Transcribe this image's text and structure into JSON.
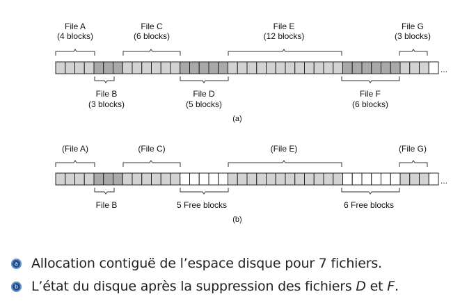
{
  "diagram_a": {
    "top_labels": [
      {
        "name": "File A",
        "blocks": "(4 blocks)"
      },
      {
        "name": "File C",
        "blocks": "(6 blocks)"
      },
      {
        "name": "File E",
        "blocks": "(12 blocks)"
      },
      {
        "name": "File G",
        "blocks": "(3 blocks)"
      }
    ],
    "bottom_labels": [
      {
        "name": "File B",
        "blocks": "(3 blocks)"
      },
      {
        "name": "File D",
        "blocks": "(5 blocks)"
      },
      {
        "name": "File F",
        "blocks": "(6 blocks)"
      }
    ],
    "caption": "(a)",
    "ellipsis": "..."
  },
  "diagram_b": {
    "top_labels": [
      "(File A)",
      "(File C)",
      "(File E)",
      "(File G)"
    ],
    "bottom_labels": [
      "File B",
      "5 Free blocks",
      "6 Free blocks"
    ],
    "caption": "(b)",
    "ellipsis": "..."
  },
  "disk": {
    "total_blocks": 40,
    "files_a": [
      {
        "file": "A",
        "start": 0,
        "length": 4,
        "color": "#d3d3d3"
      },
      {
        "file": "B",
        "start": 4,
        "length": 3,
        "color": "#a9a9a9"
      },
      {
        "file": "C",
        "start": 7,
        "length": 6,
        "color": "#d3d3d3"
      },
      {
        "file": "D",
        "start": 13,
        "length": 5,
        "color": "#a9a9a9"
      },
      {
        "file": "E",
        "start": 18,
        "length": 12,
        "color": "#d3d3d3"
      },
      {
        "file": "F",
        "start": 30,
        "length": 6,
        "color": "#a9a9a9"
      },
      {
        "file": "G",
        "start": 36,
        "length": 3,
        "color": "#d3d3d3"
      }
    ],
    "files_b": [
      {
        "file": "A",
        "start": 0,
        "length": 4,
        "color": "#d3d3d3"
      },
      {
        "file": "B",
        "start": 4,
        "length": 3,
        "color": "#a9a9a9"
      },
      {
        "file": "C",
        "start": 7,
        "length": 6,
        "color": "#d3d3d3"
      },
      {
        "file": "E",
        "start": 18,
        "length": 12,
        "color": "#d3d3d3"
      },
      {
        "file": "G",
        "start": 36,
        "length": 3,
        "color": "#d3d3d3"
      }
    ],
    "free_color": "#ffffff"
  },
  "legend": {
    "a_icon": "a",
    "a_text": "Allocation contiguë de l’espace disque pour 7 fichiers.",
    "b_icon": "b",
    "b_text_1": "L’état du disque après la suppression des fichiers ",
    "b_d": "D",
    "b_text_2": " et ",
    "b_f": "F",
    "b_text_3": ".",
    "bullet_color": "#1f4f8f"
  }
}
